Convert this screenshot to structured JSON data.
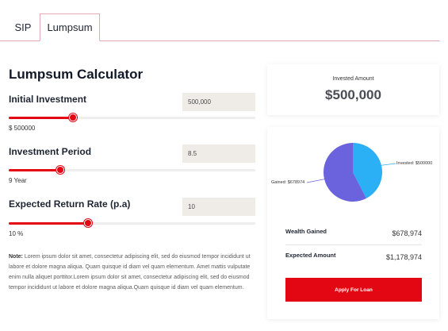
{
  "tabs": [
    {
      "label": "SIP",
      "active": false
    },
    {
      "label": "Lumpsum",
      "active": true
    }
  ],
  "calculator": {
    "title": "Lumpsum Calculator",
    "fields": [
      {
        "label": "Initial Investment",
        "input_value": "500,000",
        "display_value": "$ 500000",
        "slider_fraction": 0.26
      },
      {
        "label": "Investment Period",
        "input_value": "8.5",
        "display_value": "9 Year",
        "slider_fraction": 0.21
      },
      {
        "label": "Expected Return Rate (p.a)",
        "input_value": "10",
        "display_value": "10 %",
        "slider_fraction": 0.32
      }
    ],
    "note_label": "Note:",
    "note_text": " Lorem ipsum dolor sit amet, consectetur adipiscing elit, sed do eiusmod tempor incididunt ut labore et dolore magna aliqua. Quam quisque id diam vel quam elementum. Amet mattis vulputate enim nulla aliquet porttitor.Lorem ipsum dolor sit amet, consectetur adipiscing elit, sed do eiusmod tempor incididunt ut labore et dolore magna aliqua.Quam quisque id diam vel quam elementum."
  },
  "invested": {
    "label": "Invested Amount",
    "value": "$500,000"
  },
  "chart_data": {
    "type": "pie",
    "slices": [
      {
        "label": "Invested: $500000",
        "value": 500000,
        "color": "#2bb0f5"
      },
      {
        "label": "Gained: $678974",
        "value": 678974,
        "color": "#6b63dd"
      }
    ]
  },
  "summary": {
    "wealth_gained_label": "Wealth Gained",
    "wealth_gained_value": "$678,974",
    "expected_amount_label": "Expected Amount",
    "expected_amount_value": "$1,178,974"
  },
  "apply_button_label": "Apply For Loan",
  "colors": {
    "accent": "#e30613",
    "tab_border": "#e8aab2",
    "input_bg": "#efece8"
  }
}
